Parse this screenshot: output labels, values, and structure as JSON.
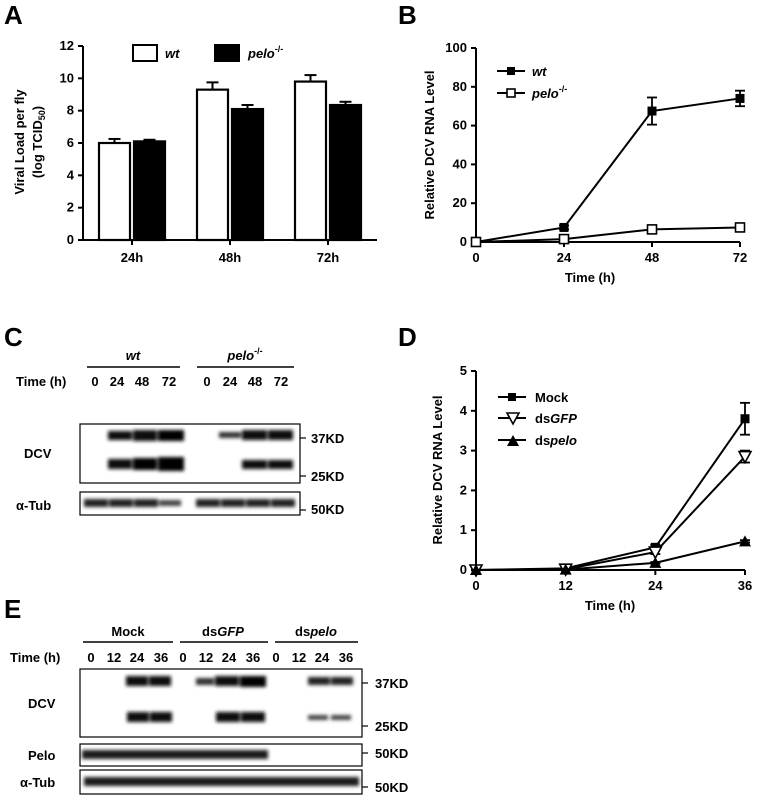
{
  "panels": {
    "A": "A",
    "B": "B",
    "C": "C",
    "D": "D",
    "E": "E"
  },
  "chart_data": [
    {
      "id": "A",
      "type": "bar",
      "categories": [
        "24h",
        "48h",
        "72h"
      ],
      "series": [
        {
          "name": "wt",
          "values": [
            6.0,
            9.3,
            9.8
          ],
          "errors": [
            0.25,
            0.45,
            0.4
          ],
          "color": "#ffffff"
        },
        {
          "name": "pelo-/-",
          "values": [
            6.1,
            8.1,
            8.35
          ],
          "errors": [
            0.1,
            0.25,
            0.2
          ],
          "color": "#000000"
        }
      ],
      "ylabel_line1": "Viral Load per fly",
      "ylabel_line2_prefix": "(log TCID",
      "ylabel_line2_sub": "50",
      "ylabel_line2_suffix": ")",
      "ylim": [
        0,
        12
      ],
      "yticks": [
        "0",
        "2",
        "4",
        "6",
        "8",
        "10",
        "12"
      ],
      "legend": {
        "wt": "wt",
        "pelo_base": "pelo",
        "pelo_sup": "-/-"
      },
      "legend_position": "top"
    },
    {
      "id": "B",
      "type": "line",
      "x": [
        0,
        24,
        48,
        72
      ],
      "series": [
        {
          "name": "wt",
          "values": [
            0,
            7.5,
            67.5,
            74
          ],
          "errors": [
            0,
            1,
            7,
            4
          ],
          "marker": "filled-square"
        },
        {
          "name": "pelo-/-",
          "values": [
            0,
            1.5,
            6.5,
            7.5
          ],
          "errors": [
            0,
            0.3,
            1,
            1
          ],
          "marker": "open-square"
        }
      ],
      "xlabel": "Time (h)",
      "ylabel": "Relative DCV RNA Level",
      "xlim": [
        0,
        72
      ],
      "ylim": [
        0,
        100
      ],
      "xticks": [
        "0",
        "24",
        "48",
        "72"
      ],
      "yticks": [
        "0",
        "20",
        "40",
        "60",
        "80",
        "100"
      ],
      "legend": {
        "wt": "wt",
        "pelo_base": "pelo",
        "pelo_sup": "-/-"
      },
      "legend_position": "top-left"
    },
    {
      "id": "D",
      "type": "line",
      "x": [
        0,
        12,
        24,
        36
      ],
      "series": [
        {
          "name": "Mock",
          "values": [
            0,
            0.04,
            0.57,
            3.8
          ],
          "errors": [
            0,
            0.03,
            0.06,
            0.4
          ],
          "marker": "filled-square"
        },
        {
          "name": "dsGFP",
          "values": [
            0,
            0.02,
            0.45,
            2.85
          ],
          "errors": [
            0,
            0.02,
            0.05,
            0.15
          ],
          "marker": "open-triangle-down"
        },
        {
          "name": "dspelo",
          "values": [
            0,
            0.01,
            0.18,
            0.72
          ],
          "errors": [
            0,
            0.01,
            0.02,
            0.03
          ],
          "marker": "filled-triangle"
        }
      ],
      "xlabel": "Time (h)",
      "ylabel": "Relative DCV RNA Level",
      "xlim": [
        0,
        36
      ],
      "ylim": [
        0,
        5
      ],
      "xticks": [
        "0",
        "12",
        "24",
        "36"
      ],
      "yticks": [
        "0",
        "1",
        "2",
        "3",
        "4",
        "5"
      ],
      "legend": {
        "mock": "Mock",
        "ds_prefix": "ds",
        "gfp": "GFP",
        "pelo": "pelo"
      },
      "legend_position": "top-left"
    }
  ],
  "blot_C": {
    "groups": [
      "wt",
      "pelo"
    ],
    "pelo_sup": "-/-",
    "time_label": "Time (h)",
    "times": [
      "0",
      "24",
      "48",
      "72",
      "0",
      "24",
      "48",
      "72"
    ],
    "rows": [
      "DCV",
      "α-Tub"
    ],
    "markers": [
      "37KD",
      "25KD",
      "50KD"
    ]
  },
  "blot_E": {
    "groups": [
      "Mock",
      "ds",
      "GFP",
      "ds",
      "pelo"
    ],
    "time_label": "Time (h)",
    "times": [
      "0",
      "12",
      "24",
      "36",
      "0",
      "12",
      "24",
      "36",
      "0",
      "12",
      "24",
      "36"
    ],
    "rows": [
      "DCV",
      "Pelo",
      "α-Tub"
    ],
    "markers": [
      "37KD",
      "25KD",
      "50KD",
      "50KD"
    ]
  }
}
